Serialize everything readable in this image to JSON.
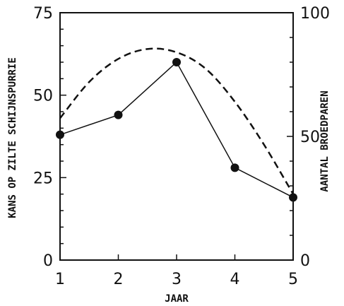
{
  "chart_data": {
    "type": "line",
    "xlabel": "JAAR",
    "ylabel": "KANS OP ZILTE SCHIJNSPURRIE",
    "ylabel_right": "AANTAL BROEDPAREN",
    "x_ticks": [
      "1",
      "2",
      "3",
      "4",
      "5"
    ],
    "y_ticks": [
      "0",
      "25",
      "50",
      "75"
    ],
    "y_right_ticks": [
      "0",
      "50",
      "100"
    ],
    "xlim": [
      1,
      5
    ],
    "ylim": [
      0,
      75
    ],
    "ylim_right": [
      0,
      100
    ],
    "grid": false,
    "series": [
      {
        "axis": "left",
        "style": "solid-with-markers",
        "x": [
          1,
          2,
          3,
          4,
          5
        ],
        "values": [
          38,
          44,
          60,
          28,
          19
        ]
      },
      {
        "axis": "left",
        "style": "dashed-fit",
        "x": [
          1,
          1.5,
          2,
          2.5,
          3,
          3.5,
          4,
          4.5,
          5
        ],
        "values": [
          43,
          54,
          61,
          64,
          63,
          58,
          48,
          35,
          20
        ]
      }
    ]
  }
}
